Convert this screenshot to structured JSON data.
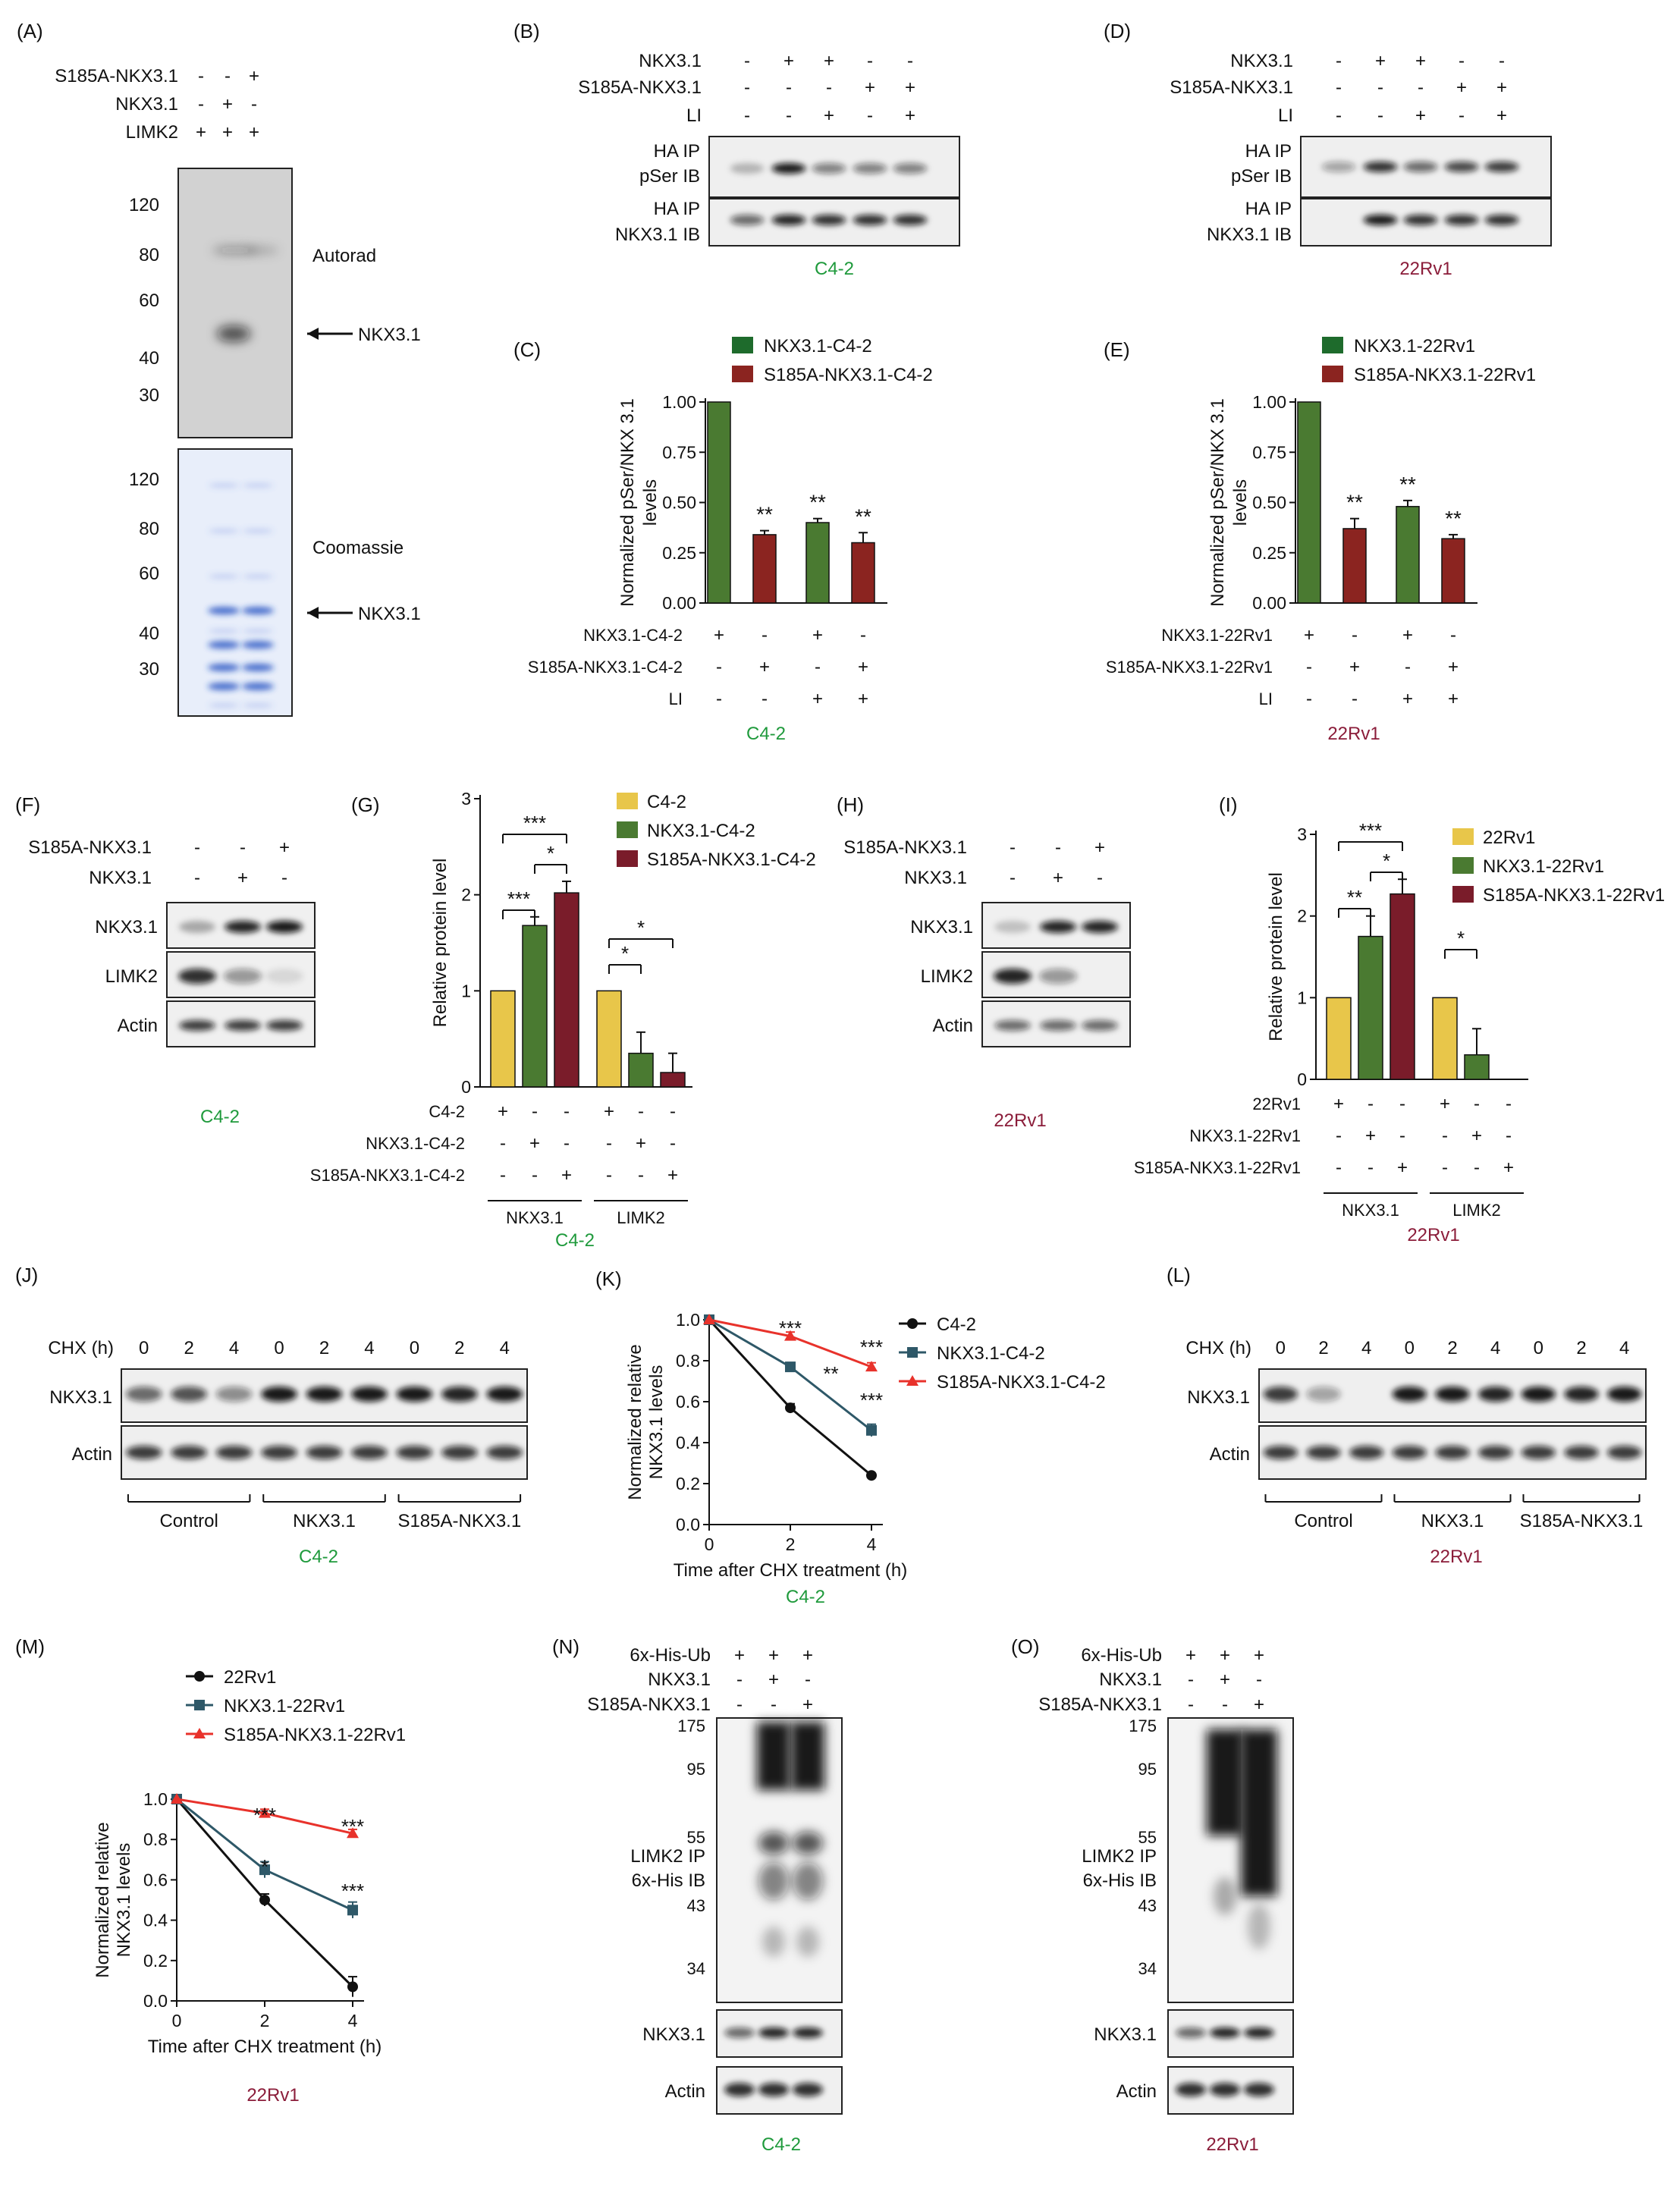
{
  "panels": {
    "A": {
      "label": "(A)",
      "rows": [
        {
          "name": "S185A-NKX3.1",
          "signs": [
            "-",
            "-",
            "+"
          ]
        },
        {
          "name": "NKX3.1",
          "signs": [
            "-",
            "+",
            "-"
          ]
        },
        {
          "name": "LIMK2",
          "signs": [
            "+",
            "+",
            "+"
          ]
        }
      ],
      "autorad_markers": [
        "120",
        "80",
        "60",
        "40",
        "30"
      ],
      "autorad_label": "Autorad",
      "arrow_label": "NKX3.1",
      "coomassie_markers": [
        "120",
        "80",
        "60",
        "40",
        "30"
      ],
      "coomassie_label": "Coomassie",
      "arrow_label2": "NKX3.1"
    },
    "B": {
      "label": "(B)",
      "rows": [
        {
          "name": "NKX3.1",
          "signs": [
            "-",
            "+",
            "+",
            "-",
            "-"
          ]
        },
        {
          "name": "S185A-NKX3.1",
          "signs": [
            "-",
            "-",
            "-",
            "+",
            "+"
          ]
        },
        {
          "name": "LI",
          "signs": [
            "-",
            "-",
            "+",
            "-",
            "+"
          ]
        }
      ],
      "blot1": [
        "HA IP",
        "pSer IB"
      ],
      "blot2": [
        "HA IP",
        "NKX3.1 IB"
      ],
      "cell": "C4-2"
    },
    "D": {
      "label": "(D)",
      "rows": [
        {
          "name": "NKX3.1",
          "signs": [
            "-",
            "+",
            "+",
            "-",
            "-"
          ]
        },
        {
          "name": "S185A-NKX3.1",
          "signs": [
            "-",
            "-",
            "-",
            "+",
            "+"
          ]
        },
        {
          "name": "LI",
          "signs": [
            "-",
            "-",
            "+",
            "-",
            "+"
          ]
        }
      ],
      "blot1": [
        "HA IP",
        "pSer IB"
      ],
      "blot2": [
        "HA IP",
        "NKX3.1 IB"
      ],
      "cell": "22Rv1"
    },
    "F": {
      "label": "(F)",
      "rows": [
        {
          "name": "S185A-NKX3.1",
          "signs": [
            "-",
            "-",
            "+"
          ]
        },
        {
          "name": "NKX3.1",
          "signs": [
            "-",
            "+",
            "-"
          ]
        }
      ],
      "blots": [
        "NKX3.1",
        "LIMK2",
        "Actin"
      ],
      "cell": "C4-2"
    },
    "H": {
      "label": "(H)",
      "rows": [
        {
          "name": "S185A-NKX3.1",
          "signs": [
            "-",
            "-",
            "+"
          ]
        },
        {
          "name": "NKX3.1",
          "signs": [
            "-",
            "+",
            "-"
          ]
        }
      ],
      "blots": [
        "NKX3.1",
        "LIMK2",
        "Actin"
      ],
      "cell": "22Rv1"
    },
    "J": {
      "label": "(J)",
      "chx": "CHX (h)",
      "times": [
        "0",
        "2",
        "4",
        "0",
        "2",
        "4",
        "0",
        "2",
        "4"
      ],
      "blots": [
        "NKX3.1",
        "Actin"
      ],
      "groups": [
        "Control",
        "NKX3.1",
        "S185A-NKX3.1"
      ],
      "cell": "C4-2"
    },
    "L": {
      "label": "(L)",
      "chx": "CHX (h)",
      "times": [
        "0",
        "2",
        "4",
        "0",
        "2",
        "4",
        "0",
        "2",
        "4"
      ],
      "blots": [
        "NKX3.1",
        "Actin"
      ],
      "groups": [
        "Control",
        "NKX3.1",
        "S185A-NKX3.1"
      ],
      "cell": "22Rv1"
    },
    "N": {
      "label": "(N)",
      "rows": [
        {
          "name": "6x-His-Ub",
          "signs": [
            "+",
            "+",
            "+"
          ]
        },
        {
          "name": "NKX3.1",
          "signs": [
            "-",
            "+",
            "-"
          ]
        },
        {
          "name": "S185A-NKX3.1",
          "signs": [
            "-",
            "-",
            "+"
          ]
        }
      ],
      "markers": [
        "175",
        "95",
        "55",
        "43",
        "34"
      ],
      "ip": [
        "LIMK2 IP",
        "6x-His IB"
      ],
      "blots": [
        "NKX3.1",
        "Actin"
      ],
      "cell": "C4-2"
    },
    "O": {
      "label": "(O)",
      "rows": [
        {
          "name": "6x-His-Ub",
          "signs": [
            "+",
            "+",
            "+"
          ]
        },
        {
          "name": "NKX3.1",
          "signs": [
            "-",
            "+",
            "-"
          ]
        },
        {
          "name": "S185A-NKX3.1",
          "signs": [
            "-",
            "-",
            "+"
          ]
        }
      ],
      "markers": [
        "175",
        "95",
        "55",
        "43",
        "34"
      ],
      "ip": [
        "LIMK2 IP",
        "6x-His IB"
      ],
      "blots": [
        "NKX3.1",
        "Actin"
      ],
      "cell": "22Rv1"
    }
  },
  "chart_data": [
    {
      "panel": "(C)",
      "type": "bar",
      "ylabel": "Normalized pSer/NKX 3.1 levels",
      "ylim": [
        0,
        1.0
      ],
      "yticks": [
        "0.00",
        "0.25",
        "0.50",
        "0.75",
        "1.00"
      ],
      "legend": [
        "NKX3.1-C4-2",
        "S185A-NKX3.1-C4-2"
      ],
      "bars": [
        {
          "series": 0,
          "value": 1.0,
          "err": 0,
          "sig": ""
        },
        {
          "series": 1,
          "value": 0.34,
          "err": 0.02,
          "sig": "**"
        },
        {
          "series": 0,
          "value": 0.4,
          "err": 0.02,
          "sig": "**"
        },
        {
          "series": 1,
          "value": 0.3,
          "err": 0.05,
          "sig": "**"
        }
      ],
      "rows": [
        {
          "name": "NKX3.1-C4-2",
          "signs": [
            "+",
            "-",
            "+",
            "-"
          ]
        },
        {
          "name": "S185A-NKX3.1-C4-2",
          "signs": [
            "-",
            "+",
            "-",
            "+"
          ]
        },
        {
          "name": "LI",
          "signs": [
            "-",
            "-",
            "+",
            "+"
          ]
        }
      ],
      "cell": "C4-2"
    },
    {
      "panel": "(E)",
      "type": "bar",
      "ylabel": "Normalized pSer/NKX 3.1 levels",
      "ylim": [
        0,
        1.0
      ],
      "yticks": [
        "0.00",
        "0.25",
        "0.50",
        "0.75",
        "1.00"
      ],
      "legend": [
        "NKX3.1-22Rv1",
        "S185A-NKX3.1-22Rv1"
      ],
      "bars": [
        {
          "series": 0,
          "value": 1.0,
          "err": 0,
          "sig": ""
        },
        {
          "series": 1,
          "value": 0.37,
          "err": 0.05,
          "sig": "**"
        },
        {
          "series": 0,
          "value": 0.48,
          "err": 0.03,
          "sig": "**"
        },
        {
          "series": 1,
          "value": 0.32,
          "err": 0.02,
          "sig": "**"
        }
      ],
      "rows": [
        {
          "name": "NKX3.1-22Rv1",
          "signs": [
            "+",
            "-",
            "+",
            "-"
          ]
        },
        {
          "name": "S185A-NKX3.1-22Rv1",
          "signs": [
            "-",
            "+",
            "-",
            "+"
          ]
        },
        {
          "name": "LI",
          "signs": [
            "-",
            "-",
            "+",
            "+"
          ]
        }
      ],
      "cell": "22Rv1"
    },
    {
      "panel": "(G)",
      "type": "bar",
      "ylabel": "Relative protein level",
      "ylim": [
        0,
        3
      ],
      "yticks": [
        "0",
        "1",
        "2",
        "3"
      ],
      "legend": [
        "C4-2",
        "NKX3.1-C4-2",
        "S185A-NKX3.1-C4-2"
      ],
      "bars": [
        {
          "series": 0,
          "value": 1.0,
          "err": 0
        },
        {
          "series": 1,
          "value": 1.68,
          "err": 0.09
        },
        {
          "series": 2,
          "value": 2.02,
          "err": 0.12
        },
        {
          "series": 0,
          "value": 1.0,
          "err": 0
        },
        {
          "series": 1,
          "value": 0.35,
          "err": 0.22
        },
        {
          "series": 2,
          "value": 0.15,
          "err": 0.2
        }
      ],
      "sig": [
        "***",
        "*",
        "***",
        "*",
        "*"
      ],
      "rows": [
        {
          "name": "C4-2",
          "signs": [
            "+",
            "-",
            "-",
            "+",
            "-",
            "-"
          ]
        },
        {
          "name": "NKX3.1-C4-2",
          "signs": [
            "-",
            "+",
            "-",
            "-",
            "+",
            "-"
          ]
        },
        {
          "name": "S185A-NKX3.1-C4-2",
          "signs": [
            "-",
            "-",
            "+",
            "-",
            "-",
            "+"
          ]
        }
      ],
      "groups": [
        "NKX3.1",
        "LIMK2"
      ],
      "cell": "C4-2"
    },
    {
      "panel": "(I)",
      "type": "bar",
      "ylabel": "Relative protein level",
      "ylim": [
        0,
        3
      ],
      "yticks": [
        "0",
        "1",
        "2",
        "3"
      ],
      "legend": [
        "22Rv1",
        "NKX3.1-22Rv1",
        "S185A-NKX3.1-22Rv1"
      ],
      "bars": [
        {
          "series": 0,
          "value": 1.0,
          "err": 0
        },
        {
          "series": 1,
          "value": 1.75,
          "err": 0.25
        },
        {
          "series": 2,
          "value": 2.27,
          "err": 0.18
        },
        {
          "series": 0,
          "value": 1.0,
          "err": 0
        },
        {
          "series": 1,
          "value": 0.3,
          "err": 0.32
        },
        {
          "series": 2,
          "value": 0,
          "err": 0
        }
      ],
      "sig": [
        "***",
        "*",
        "**",
        "*"
      ],
      "rows": [
        {
          "name": "22Rv1",
          "signs": [
            "+",
            "-",
            "-",
            "+",
            "-",
            "-"
          ]
        },
        {
          "name": "NKX3.1-22Rv1",
          "signs": [
            "-",
            "+",
            "-",
            "-",
            "+",
            "-"
          ]
        },
        {
          "name": "S185A-NKX3.1-22Rv1",
          "signs": [
            "-",
            "-",
            "+",
            "-",
            "-",
            "+"
          ]
        }
      ],
      "groups": [
        "NKX3.1",
        "LIMK2"
      ],
      "cell": "22Rv1"
    },
    {
      "panel": "(K)",
      "type": "line",
      "xlabel": "Time after CHX treatment (h)",
      "ylabel": "Normalized relative NKX3.1 levels",
      "xlim": [
        0,
        4
      ],
      "ylim": [
        0,
        1.0
      ],
      "xticks": [
        "0",
        "2",
        "4"
      ],
      "yticks": [
        "0.0",
        "0.2",
        "0.4",
        "0.6",
        "0.8",
        "1.0"
      ],
      "series": [
        {
          "name": "C4-2",
          "color": "#111111",
          "x": [
            0,
            2,
            4
          ],
          "y": [
            1.0,
            0.57,
            0.24
          ],
          "err": [
            0,
            0.02,
            0.01
          ]
        },
        {
          "name": "NKX3.1-C4-2",
          "color": "#2e5868",
          "x": [
            0,
            2,
            4
          ],
          "y": [
            1.0,
            0.77,
            0.46
          ],
          "err": [
            0,
            0.02,
            0.03
          ]
        },
        {
          "name": "S185A-NKX3.1-C4-2",
          "color": "#e8322b",
          "x": [
            0,
            2,
            4
          ],
          "y": [
            1.0,
            0.92,
            0.77
          ],
          "err": [
            0,
            0.02,
            0.02
          ]
        }
      ],
      "annotations": [
        "***",
        "**",
        "***",
        "***"
      ],
      "cell": "C4-2"
    },
    {
      "panel": "(M)",
      "type": "line",
      "xlabel": "Time after CHX treatment (h)",
      "ylabel": "Normalized relative NKX3.1 levels",
      "xlim": [
        0,
        4
      ],
      "ylim": [
        0,
        1.0
      ],
      "xticks": [
        "0",
        "2",
        "4"
      ],
      "yticks": [
        "0.0",
        "0.2",
        "0.4",
        "0.6",
        "0.8",
        "1.0"
      ],
      "series": [
        {
          "name": "22Rv1",
          "color": "#111111",
          "x": [
            0,
            2,
            4
          ],
          "y": [
            1.0,
            0.5,
            0.07
          ],
          "err": [
            0,
            0.03,
            0.05
          ]
        },
        {
          "name": "NKX3.1-22Rv1",
          "color": "#2e5868",
          "x": [
            0,
            2,
            4
          ],
          "y": [
            1.0,
            0.65,
            0.45
          ],
          "err": [
            0,
            0.04,
            0.04
          ]
        },
        {
          "name": "S185A-NKX3.1-22Rv1",
          "color": "#e8322b",
          "x": [
            0,
            2,
            4
          ],
          "y": [
            1.0,
            0.93,
            0.83
          ],
          "err": [
            0,
            0.02,
            0.02
          ]
        }
      ],
      "annotations": [
        "***",
        "***",
        "*",
        "***"
      ],
      "cell": "22Rv1"
    }
  ],
  "colors": {
    "green_text": "#1f9a3c",
    "red_text": "#8b1d3a",
    "green_bar": "#4a7a31",
    "red_bar": "#8b2420",
    "yellow_bar": "#e8c64a",
    "dkred_bar": "#7a1c2a"
  }
}
